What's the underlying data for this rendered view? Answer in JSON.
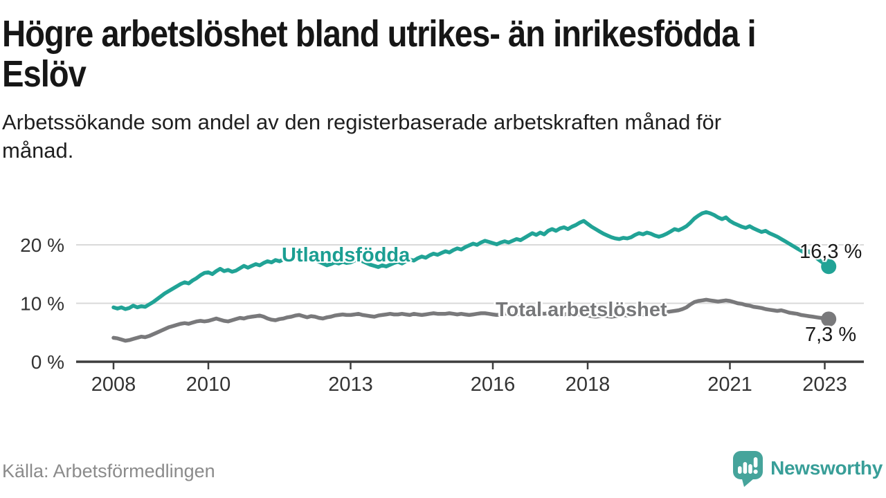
{
  "header": {
    "title_lines": [
      "Högre arbetslöshet bland utrikes- än inrikesfödda i",
      "Eslöv"
    ],
    "subtitle_lines": [
      "Arbetssökande som andel av den registerbaserade arbetskraften månad för",
      "månad."
    ]
  },
  "footer": {
    "source": "Källa: Arbetsförmedlingen",
    "brand": "Newsworthy",
    "brand_color": "#389e98",
    "logo_icon": "speech-bubble-bar-chart-icon"
  },
  "chart_data": {
    "type": "line",
    "title": "Högre arbetslöshet bland utrikes- än inrikesfödda i Eslöv",
    "subtitle": "Arbetssökande som andel av den registerbaserade arbetskraften månad för månad.",
    "x_interval": "monthly",
    "x_start": "2008-01",
    "x_end": "2023-02",
    "x_ticks": [
      "2008",
      "2010",
      "2013",
      "2016",
      "2018",
      "2021",
      "2023"
    ],
    "x_tick_years": [
      2008,
      2010,
      2013,
      2016,
      2018,
      2021,
      2023
    ],
    "y_ticks": [
      "0 %",
      "10 %",
      "20 %"
    ],
    "y_tick_values": [
      0,
      10,
      20
    ],
    "ylim": [
      0,
      27
    ],
    "grid": "horizontal",
    "legend_position": "inline-labels",
    "axis_color": "#3d3d3d",
    "grid_color": "#d9d9d9",
    "series": [
      {
        "name": "Utlandsfödda",
        "color": "#21a396",
        "end_label": "16,3 %",
        "end_value": 16.3,
        "values": [
          9.3,
          9.1,
          9.3,
          9.0,
          9.2,
          9.6,
          9.3,
          9.5,
          9.4,
          9.8,
          10.2,
          10.7,
          11.2,
          11.7,
          12.1,
          12.5,
          12.9,
          13.3,
          13.6,
          13.4,
          13.9,
          14.3,
          14.8,
          15.2,
          15.3,
          15.0,
          15.5,
          15.9,
          15.5,
          15.7,
          15.4,
          15.6,
          16.0,
          16.4,
          16.1,
          16.4,
          16.7,
          16.5,
          16.9,
          17.2,
          17.0,
          17.4,
          17.2,
          17.5,
          17.3,
          17.6,
          18.0,
          18.3,
          17.9,
          17.6,
          17.8,
          17.4,
          17.1,
          16.8,
          16.5,
          16.7,
          17.0,
          16.8,
          17.1,
          16.9,
          17.0,
          17.3,
          17.6,
          17.2,
          16.9,
          16.6,
          16.4,
          16.2,
          16.5,
          16.3,
          16.6,
          16.9,
          17.1,
          16.8,
          17.2,
          17.5,
          17.3,
          17.7,
          18.0,
          17.8,
          18.2,
          18.5,
          18.3,
          18.6,
          18.9,
          18.7,
          19.1,
          19.4,
          19.2,
          19.6,
          19.9,
          20.2,
          20.0,
          20.4,
          20.7,
          20.5,
          20.3,
          20.1,
          20.4,
          20.6,
          20.4,
          20.7,
          21.0,
          20.8,
          21.2,
          21.6,
          22.0,
          21.7,
          22.1,
          21.8,
          22.4,
          22.7,
          22.4,
          22.8,
          23.0,
          22.7,
          23.1,
          23.4,
          23.8,
          24.1,
          23.6,
          23.1,
          22.7,
          22.3,
          21.9,
          21.6,
          21.3,
          21.1,
          21.0,
          21.2,
          21.1,
          21.3,
          21.7,
          22.0,
          21.8,
          22.1,
          21.9,
          21.6,
          21.4,
          21.6,
          21.9,
          22.3,
          22.7,
          22.5,
          22.8,
          23.2,
          23.8,
          24.5,
          25.0,
          25.4,
          25.6,
          25.4,
          25.1,
          24.7,
          24.4,
          24.7,
          24.1,
          23.7,
          23.4,
          23.1,
          22.9,
          23.2,
          22.8,
          22.5,
          22.2,
          22.4,
          22.0,
          21.7,
          21.4,
          21.0,
          20.6,
          20.2,
          19.8,
          19.4,
          19.0,
          18.6,
          18.9,
          18.3,
          17.7,
          17.2,
          16.7,
          16.3
        ]
      },
      {
        "name": "Total arbetslöshet",
        "color": "#79797b",
        "end_label": "7,3 %",
        "end_value": 7.3,
        "values": [
          4.1,
          4.0,
          3.8,
          3.6,
          3.7,
          3.9,
          4.1,
          4.3,
          4.2,
          4.4,
          4.7,
          5.0,
          5.3,
          5.6,
          5.9,
          6.1,
          6.3,
          6.5,
          6.6,
          6.5,
          6.7,
          6.9,
          7.0,
          6.9,
          7.0,
          7.2,
          7.4,
          7.2,
          7.0,
          6.9,
          7.1,
          7.3,
          7.5,
          7.4,
          7.6,
          7.7,
          7.8,
          7.9,
          7.7,
          7.4,
          7.2,
          7.1,
          7.3,
          7.4,
          7.6,
          7.7,
          7.9,
          8.0,
          7.8,
          7.6,
          7.8,
          7.7,
          7.5,
          7.4,
          7.6,
          7.7,
          7.9,
          8.0,
          8.1,
          8.0,
          8.0,
          8.1,
          8.2,
          8.0,
          7.9,
          7.8,
          7.7,
          7.9,
          8.0,
          8.1,
          8.2,
          8.1,
          8.1,
          8.2,
          8.1,
          8.0,
          8.2,
          8.1,
          8.0,
          8.1,
          8.2,
          8.3,
          8.2,
          8.2,
          8.2,
          8.3,
          8.2,
          8.1,
          8.2,
          8.1,
          8.0,
          8.1,
          8.2,
          8.3,
          8.3,
          8.2,
          8.1,
          8.0,
          8.1,
          8.2,
          8.3,
          8.2,
          8.1,
          8.2,
          8.3,
          8.4,
          8.3,
          8.4,
          8.3,
          8.2,
          8.3,
          8.4,
          8.3,
          8.2,
          8.1,
          8.2,
          8.3,
          8.2,
          8.1,
          8.0,
          7.9,
          7.8,
          7.7,
          7.8,
          7.9,
          7.8,
          7.7,
          7.8,
          7.9,
          8.0,
          7.9,
          8.0,
          8.1,
          8.2,
          8.1,
          8.2,
          8.3,
          8.2,
          8.3,
          8.4,
          8.5,
          8.6,
          8.7,
          8.8,
          9.0,
          9.3,
          9.8,
          10.2,
          10.4,
          10.5,
          10.6,
          10.5,
          10.4,
          10.3,
          10.4,
          10.5,
          10.4,
          10.2,
          10.0,
          9.9,
          9.7,
          9.6,
          9.4,
          9.3,
          9.2,
          9.0,
          8.9,
          8.8,
          8.7,
          8.8,
          8.6,
          8.4,
          8.3,
          8.2,
          8.0,
          7.9,
          7.8,
          7.7,
          7.6,
          7.5,
          7.4,
          7.3
        ]
      }
    ]
  }
}
